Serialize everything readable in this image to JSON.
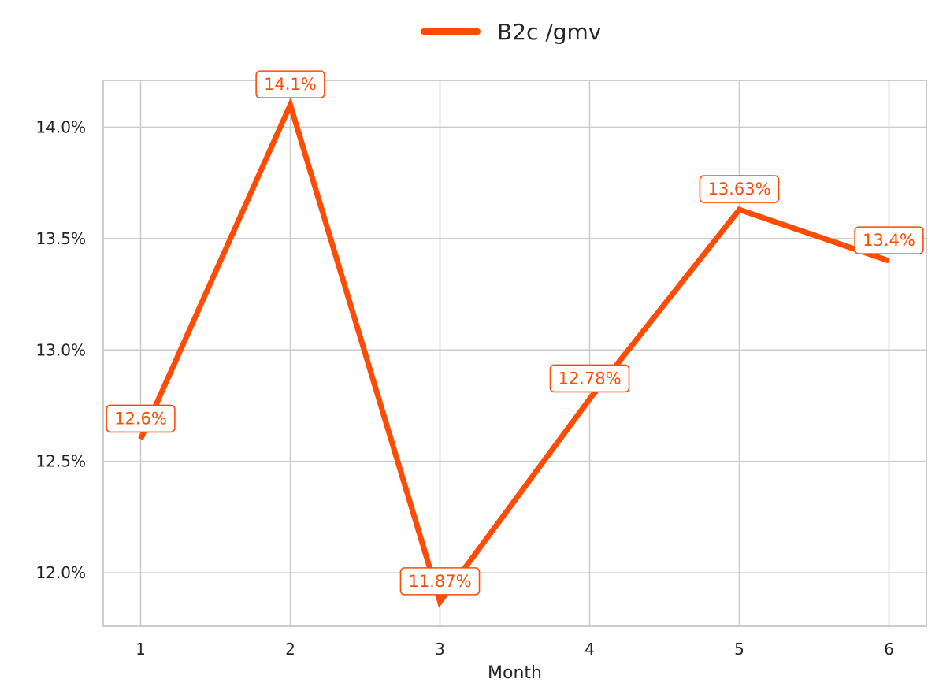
{
  "chart_data": {
    "type": "line",
    "title": "",
    "xlabel": "Month",
    "ylabel": "",
    "x": [
      1,
      2,
      3,
      4,
      5,
      6
    ],
    "xtick_labels": [
      "1",
      "2",
      "3",
      "4",
      "5",
      "6"
    ],
    "ylim": [
      11.76,
      14.21
    ],
    "yticks": [
      12.0,
      12.5,
      13.0,
      13.5,
      14.0
    ],
    "ytick_labels": [
      "12.0%",
      "12.5%",
      "13.0%",
      "13.5%",
      "14.0%"
    ],
    "series": [
      {
        "name": "B2c /gmv",
        "color": "#ff4c05",
        "values": [
          12.6,
          14.1,
          11.87,
          12.78,
          13.63,
          13.4
        ],
        "data_labels": [
          "12.6%",
          "14.1%",
          "11.87%",
          "12.78%",
          "13.63%",
          "13.4%"
        ]
      }
    ],
    "grid": true,
    "legend_position": "top-center"
  }
}
